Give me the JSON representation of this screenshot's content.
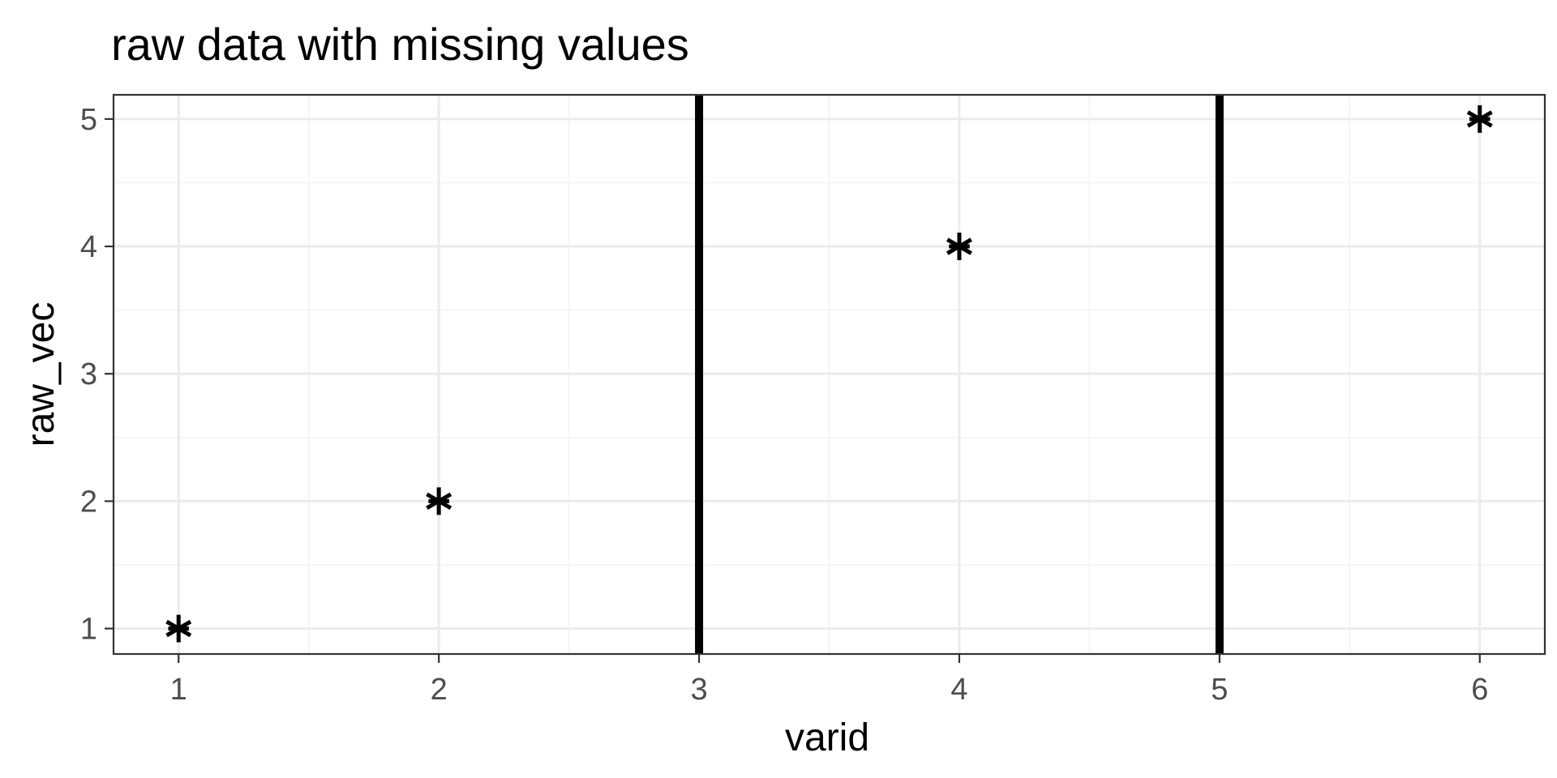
{
  "chart_data": {
    "type": "scatter",
    "title": "raw data with missing values",
    "xlabel": "varid",
    "ylabel": "raw_vec",
    "x_ticks": [
      1,
      2,
      3,
      4,
      5,
      6
    ],
    "y_ticks": [
      1,
      2,
      3,
      4,
      5
    ],
    "xlim": [
      0.75,
      6.25
    ],
    "ylim": [
      0.8,
      5.19
    ],
    "grid": true,
    "point_shape": "asterisk",
    "series": [
      {
        "points": [
          {
            "x": 1,
            "y": 1
          },
          {
            "x": 2,
            "y": 2
          },
          {
            "x": 4,
            "y": 4
          },
          {
            "x": 6,
            "y": 5
          }
        ]
      }
    ],
    "vlines": [
      3,
      5
    ],
    "colors": {
      "background": "#ffffff",
      "panel_border": "#333333",
      "grid_major": "#ebebeb",
      "grid_minor": "#f2f2f2",
      "tick_text": "#4d4d4d",
      "marks": "#000000"
    }
  }
}
